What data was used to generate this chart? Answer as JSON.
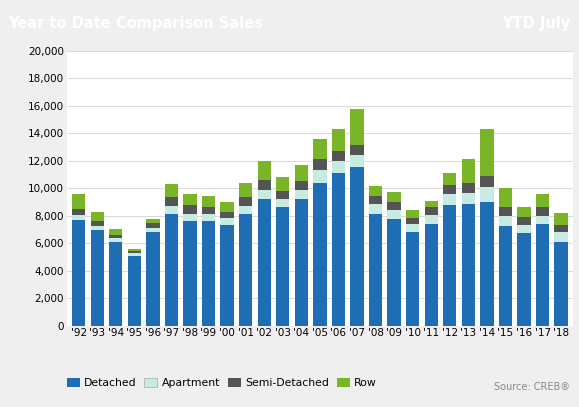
{
  "years": [
    "'92",
    "'93",
    "'94",
    "'95",
    "'96",
    "'97",
    "'98",
    "'99",
    "'00",
    "'01",
    "'02",
    "'03",
    "'04",
    "'05",
    "'06",
    "'07",
    "'08",
    "'09",
    "'10",
    "'11",
    "'12",
    "'13",
    "'14",
    "'15",
    "'16",
    "'17",
    "'18"
  ],
  "detached": [
    7700,
    6950,
    6100,
    5100,
    6800,
    8150,
    7650,
    7650,
    7350,
    8100,
    9200,
    8600,
    9200,
    10400,
    11100,
    11550,
    8150,
    7750,
    6850,
    7400,
    8800,
    8850,
    9000,
    7250,
    6750,
    7400,
    6050
  ],
  "apartment": [
    350,
    300,
    250,
    150,
    300,
    550,
    500,
    450,
    450,
    600,
    700,
    600,
    650,
    900,
    900,
    900,
    700,
    650,
    550,
    650,
    750,
    800,
    1100,
    750,
    600,
    600,
    750
  ],
  "semi_detached": [
    450,
    380,
    270,
    200,
    370,
    680,
    600,
    550,
    500,
    650,
    700,
    600,
    700,
    800,
    700,
    700,
    600,
    600,
    450,
    550,
    650,
    700,
    800,
    600,
    550,
    650,
    550
  ],
  "row": [
    1050,
    620,
    430,
    150,
    320,
    950,
    850,
    800,
    700,
    1050,
    1400,
    1050,
    1150,
    1500,
    1600,
    2600,
    700,
    750,
    600,
    500,
    900,
    1800,
    3400,
    1400,
    750,
    950,
    850
  ],
  "color_detached": "#1f6db5",
  "color_apartment": "#c5ebe3",
  "color_semi_detached": "#555555",
  "color_row": "#7ab527",
  "title_left": "Year to Date Comparison Sales",
  "title_right": "YTD July",
  "header_bg": "#4a5a5e",
  "header_text": "#ffffff",
  "ylim": [
    0,
    20000
  ],
  "yticks": [
    0,
    2000,
    4000,
    6000,
    8000,
    10000,
    12000,
    14000,
    16000,
    18000,
    20000
  ],
  "source_text": "Source: CREB®",
  "bg_color": "#efefef",
  "plot_bg": "#ffffff",
  "header_fontsize": 10.5,
  "tick_fontsize": 7.5
}
